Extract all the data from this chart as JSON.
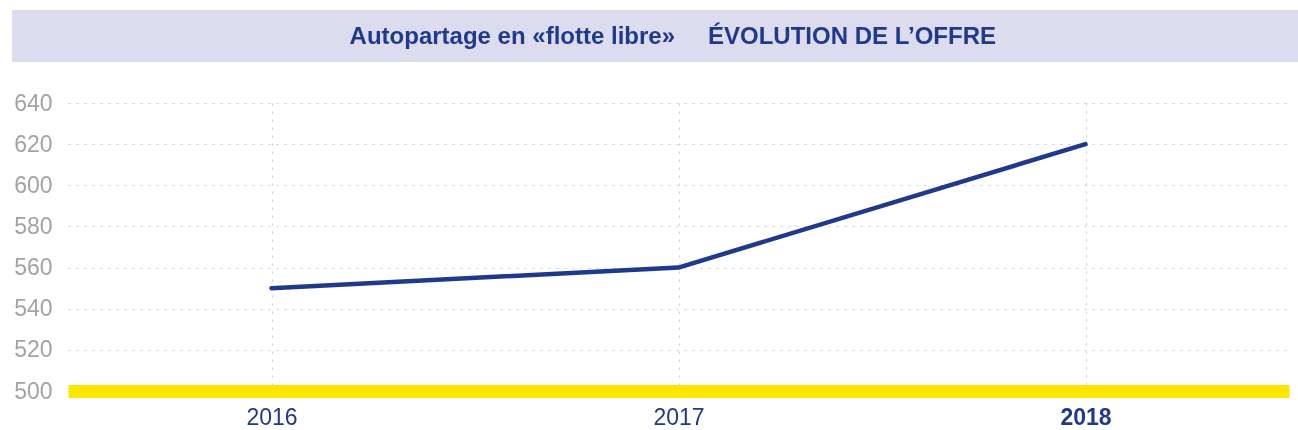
{
  "chart_data": {
    "type": "line",
    "title": "Autopartage en «flotte libre»",
    "subtitle": "ÉVOLUTION DE L’OFFRE",
    "categories": [
      "2016",
      "2017",
      "2018"
    ],
    "series": [
      {
        "color": "#1f3a8c",
        "values": [
          550,
          560,
          620
        ]
      }
    ],
    "ylim": [
      500,
      640
    ],
    "yticks": [
      500,
      520,
      540,
      560,
      580,
      600,
      620,
      640
    ],
    "grid": true,
    "marker": "none",
    "line_style": "solid"
  }
}
